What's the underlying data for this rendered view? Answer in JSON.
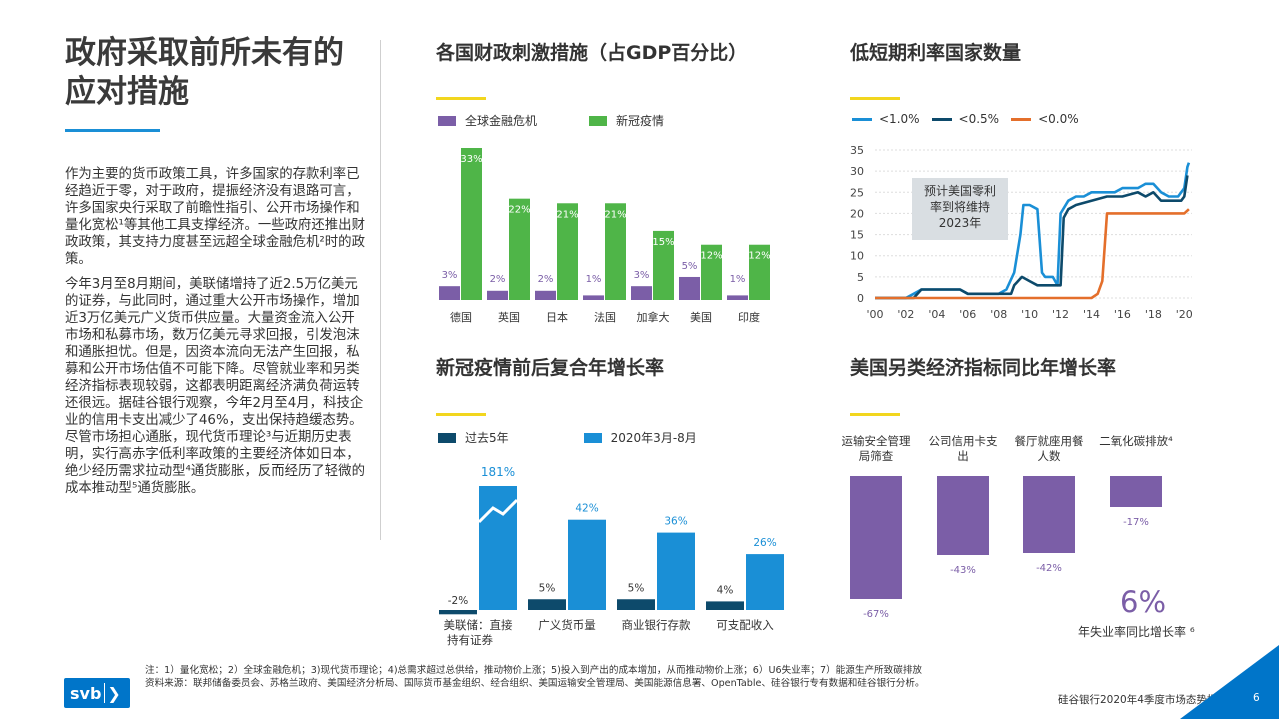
{
  "page": {
    "title": "政府采取前所未有的应对措施",
    "paragraphs": [
      "作为主要的货币政策工具，许多国家的存款利率已经趋近于零，对于政府，提振经济没有退路可言，许多国家央行采取了前瞻性指引、公开市场操作和量化宽松¹等其他工具支撑经济。一些政府还推出财政政策，其支持力度甚至远超全球金融危机²时的政策。",
      "今年3月至8月期间，美联储增持了近2.5万亿美元的证券，与此同时，通过重大公开市场操作，增加近3万亿美元广义货币供应量。大量资金流入公开市场和私募市场，数万亿美元寻求回报，引发泡沫和通胀担忧。但是，因资本流向无法产生回报，私募和公开市场估值不可能下降。尽管就业率和另类经济指标表现较弱，这都表明距离经济满负荷运转还很远。据硅谷银行观察，今年2月至4月，科技企业的信用卡支出减少了46%，支出保持趋缓态势。尽管市场担心通胀，现代货币理论³与近期历史表明，实行高赤字低利率政策的主要经济体如日本，绝少经历需求拉动型⁴通货膨胀，反而经历了轻微的成本推动型⁵通货膨胀。"
    ]
  },
  "chart_data": [
    {
      "id": "fiscal",
      "type": "bar",
      "title": "各国财政刺激措施（占GDP百分比）",
      "categories": [
        "德国",
        "英国",
        "日本",
        "法国",
        "加拿大",
        "美国",
        "印度"
      ],
      "series": [
        {
          "name": "全球金融危机",
          "values": [
            3,
            2,
            2,
            1,
            3,
            5,
            1
          ],
          "labels": [
            "3%",
            "2%",
            "2%",
            "1%",
            "3%",
            "5%",
            "1%"
          ],
          "color": "#7b5ea7"
        },
        {
          "name": "新冠疫情",
          "values": [
            33,
            22,
            21,
            21,
            15,
            12,
            12
          ],
          "labels": [
            "33%",
            "22%",
            "21%",
            "21%",
            "15%",
            "12%",
            "12%"
          ],
          "color": "#4fb548"
        }
      ],
      "ylim": [
        0,
        33
      ]
    },
    {
      "id": "rates",
      "type": "line",
      "title": "低短期利率国家数量",
      "x_ticks": [
        "'00",
        "'02",
        "'04",
        "'06",
        "'08",
        "'10",
        "'12",
        "'14",
        "'16",
        "'18",
        "'20"
      ],
      "y_ticks": [
        "0",
        "5",
        "10",
        "15",
        "20",
        "25",
        "30",
        "35"
      ],
      "ylim": [
        0,
        35
      ],
      "xlim": [
        2000,
        2020.5
      ],
      "annotation": "预计美国零利率到将维持2023年",
      "series": [
        {
          "name": "<1.0%",
          "color": "#1a8fd6",
          "points": [
            [
              2000,
              0
            ],
            [
              2002,
              0
            ],
            [
              2002.5,
              1
            ],
            [
              2003,
              2
            ],
            [
              2005.5,
              2
            ],
            [
              2006,
              1
            ],
            [
              2008,
              1
            ],
            [
              2008.5,
              2
            ],
            [
              2009,
              6
            ],
            [
              2009.4,
              15
            ],
            [
              2009.6,
              22
            ],
            [
              2010,
              22
            ],
            [
              2010.5,
              21
            ],
            [
              2010.8,
              6
            ],
            [
              2011,
              5
            ],
            [
              2011.5,
              5
            ],
            [
              2011.8,
              3
            ],
            [
              2012,
              20
            ],
            [
              2012.5,
              23
            ],
            [
              2013,
              24
            ],
            [
              2013.5,
              24
            ],
            [
              2014,
              25
            ],
            [
              2015.5,
              25
            ],
            [
              2016,
              26
            ],
            [
              2017,
              26
            ],
            [
              2017.5,
              27
            ],
            [
              2018,
              27
            ],
            [
              2018.5,
              25
            ],
            [
              2019,
              24
            ],
            [
              2019.6,
              24
            ],
            [
              2019.8,
              25
            ],
            [
              2020,
              26
            ],
            [
              2020.2,
              31
            ],
            [
              2020.3,
              32
            ]
          ]
        },
        {
          "name": "<0.5%",
          "color": "#0d4a6b",
          "points": [
            [
              2000,
              0
            ],
            [
              2002.5,
              0
            ],
            [
              2003,
              2
            ],
            [
              2005.5,
              2
            ],
            [
              2006,
              1
            ],
            [
              2008.8,
              1
            ],
            [
              2009,
              3
            ],
            [
              2009.5,
              5
            ],
            [
              2010,
              4
            ],
            [
              2010.5,
              3
            ],
            [
              2012,
              3
            ],
            [
              2012.2,
              19
            ],
            [
              2012.5,
              21
            ],
            [
              2013,
              22
            ],
            [
              2014,
              23
            ],
            [
              2015,
              24
            ],
            [
              2016,
              24
            ],
            [
              2017,
              25
            ],
            [
              2017.5,
              24
            ],
            [
              2018,
              25
            ],
            [
              2018.5,
              23
            ],
            [
              2019.5,
              23
            ],
            [
              2019.8,
              23
            ],
            [
              2020,
              24
            ],
            [
              2020.2,
              29
            ]
          ]
        },
        {
          "name": "<0.0%",
          "color": "#e46f2b",
          "points": [
            [
              2000,
              0
            ],
            [
              2014,
              0
            ],
            [
              2014.4,
              1
            ],
            [
              2014.7,
              4
            ],
            [
              2015,
              20
            ],
            [
              2019.5,
              20
            ],
            [
              2019.8,
              20
            ],
            [
              2020,
              20
            ],
            [
              2020.3,
              21
            ]
          ]
        }
      ]
    },
    {
      "id": "cagr",
      "type": "bar",
      "title": "新冠疫情前后复合年增长率",
      "categories": [
        "美联储：直接持有证券",
        "广义货币量",
        "商业银行存款",
        "可支配收入"
      ],
      "series": [
        {
          "name": "过去5年",
          "values": [
            -2,
            5,
            5,
            4
          ],
          "labels": [
            "-2%",
            "5%",
            "5%",
            "4%"
          ],
          "color": "#0d4a6b"
        },
        {
          "name": "2020年3月-8月",
          "values": [
            181,
            42,
            36,
            26
          ],
          "labels": [
            "181%",
            "42%",
            "36%",
            "26%"
          ],
          "color": "#1a8fd6"
        }
      ]
    },
    {
      "id": "alt",
      "type": "bar",
      "title": "美国另类经济指标同比年增长率",
      "categories": [
        "运输安全管理局筛查",
        "公司信用卡支出",
        "餐厅就座用餐人数",
        "二氧化碳排放⁴"
      ],
      "values": [
        -67,
        -43,
        -42,
        -17
      ],
      "labels": [
        "-67%",
        "-43%",
        "-42%",
        "-17%"
      ],
      "color": "#7b5ea7",
      "highlight": {
        "value": "6%",
        "label": "年失业率同比增长率 ⁶"
      }
    }
  ],
  "footer": {
    "notes": "注：1）量化宽松；2）全球金融危机；3)现代货币理论；4)总需求超过总供给，推动物价上涨；5)投入到产出的成本增加，从而推动物价上涨；6）U6失业率；7）能源生产所致碳排放",
    "sources": "资料来源：联邦储备委员会、苏格兰政府、美国经济分析局、国际货币基金组织、经合组织、美国运输安全管理局、美国能源信息署、OpenTable、硅谷银行专有数据和硅谷银行分析。",
    "logo_text": "svb",
    "logo_chevron": "❯",
    "report": "硅谷银行2020年4季度市场态势报告",
    "page": "6"
  }
}
